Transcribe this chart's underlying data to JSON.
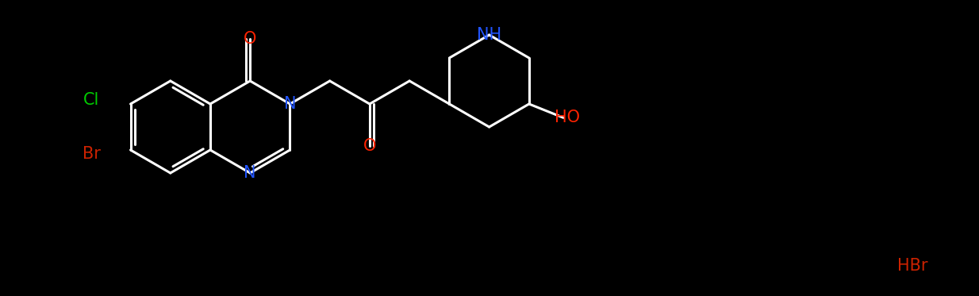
{
  "bg_color": "#000000",
  "bond_color": "#ffffff",
  "bond_width": 2.2,
  "figsize": [
    12.34,
    3.73
  ],
  "dpi": 100,
  "colors": {
    "Cl": "#00cc00",
    "Br": "#cc2200",
    "O": "#ff2200",
    "N": "#2255ff",
    "HBr": "#cc2200",
    "HO": "#ff2200",
    "bond": "#ffffff"
  },
  "font_size": 15
}
